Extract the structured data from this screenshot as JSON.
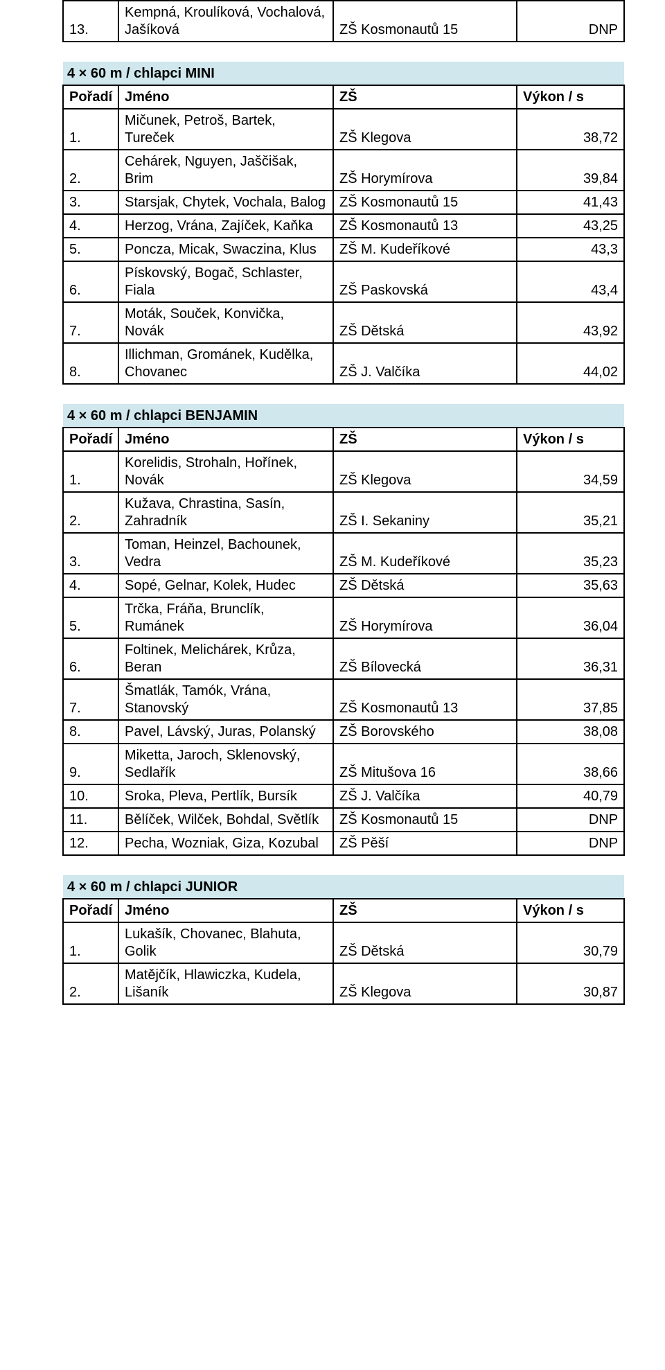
{
  "colors": {
    "section_bg": "#cfe7ed",
    "border": "#000000",
    "text": "#000000",
    "page_bg": "#ffffff"
  },
  "col_headers": {
    "rank": "Pořadí",
    "name": "Jméno",
    "school": "ZŠ",
    "result": "Výkon / s"
  },
  "tables": [
    {
      "title": null,
      "rows": [
        {
          "rank": "13.",
          "name": "Kempná, Kroulíková, Vochalová, Jašíková",
          "school": "ZŠ Kosmonautů 15",
          "result": "DNP"
        }
      ]
    },
    {
      "title": "4 × 60 m / chlapci MINI",
      "rows": [
        {
          "rank": "1.",
          "name": "Mičunek, Petroš, Bartek, Tureček",
          "school": "ZŠ Klegova",
          "result": "38,72"
        },
        {
          "rank": "2.",
          "name": "Cehárek, Nguyen, Jaščišak, Brim",
          "school": "ZŠ Horymírova",
          "result": "39,84"
        },
        {
          "rank": "3.",
          "name": "Starsjak, Chytek, Vochala, Balog",
          "school": "ZŠ Kosmonautů 15",
          "result": "41,43"
        },
        {
          "rank": "4.",
          "name": "Herzog, Vrána, Zajíček, Kaňka",
          "school": "ZŠ Kosmonautů 13",
          "result": "43,25"
        },
        {
          "rank": "5.",
          "name": "Poncza, Micak, Swaczina, Klus",
          "school": "ZŠ M. Kudeříkové",
          "result": "43,3"
        },
        {
          "rank": "6.",
          "name": "Pískovský, Bogač, Schlaster, Fiala",
          "school": "ZŠ Paskovská",
          "result": "43,4"
        },
        {
          "rank": "7.",
          "name": "Moták, Souček, Konvička, Novák",
          "school": "ZŠ Dětská",
          "result": "43,92"
        },
        {
          "rank": "8.",
          "name": "Illichman, Grománek, Kudělka, Chovanec",
          "school": "ZŠ J. Valčíka",
          "result": "44,02"
        }
      ]
    },
    {
      "title": "4 × 60 m / chlapci BENJAMIN",
      "rows": [
        {
          "rank": "1.",
          "name": "Korelidis, Strohaln, Hořínek, Novák",
          "school": "ZŠ Klegova",
          "result": "34,59"
        },
        {
          "rank": "2.",
          "name": "Kužava, Chrastina, Sasín, Zahradník",
          "school": "ZŠ I. Sekaniny",
          "result": "35,21"
        },
        {
          "rank": "3.",
          "name": "Toman, Heinzel, Bachounek, Vedra",
          "school": "ZŠ M. Kudeříkové",
          "result": "35,23"
        },
        {
          "rank": "4.",
          "name": "Sopé, Gelnar, Kolek, Hudec",
          "school": "ZŠ Dětská",
          "result": "35,63"
        },
        {
          "rank": "5.",
          "name": "Trčka, Fráňa, Brunclík, Rumánek",
          "school": "ZŠ Horymírova",
          "result": "36,04"
        },
        {
          "rank": "6.",
          "name": "Foltinek, Melichárek, Krůza, Beran",
          "school": "ZŠ Bílovecká",
          "result": "36,31"
        },
        {
          "rank": "7.",
          "name": "Šmatlák, Tamók, Vrána, Stanovský",
          "school": "ZŠ Kosmonautů 13",
          "result": "37,85"
        },
        {
          "rank": "8.",
          "name": "Pavel, Lávský, Juras, Polanský",
          "school": "ZŠ Borovského",
          "result": "38,08"
        },
        {
          "rank": "9.",
          "name": "Miketta, Jaroch, Sklenovský, Sedlařík",
          "school": "ZŠ Mitušova 16",
          "result": "38,66"
        },
        {
          "rank": "10.",
          "name": "Sroka, Pleva, Pertlík, Bursík",
          "school": "ZŠ J. Valčíka",
          "result": "40,79"
        },
        {
          "rank": "11.",
          "name": "Bělíček, Wilček, Bohdal, Světlík",
          "school": "ZŠ Kosmonautů 15",
          "result": "DNP"
        },
        {
          "rank": "12.",
          "name": "Pecha, Wozniak, Giza, Kozubal",
          "school": "ZŠ Pěší",
          "result": "DNP"
        }
      ]
    },
    {
      "title": "4 × 60 m / chlapci JUNIOR",
      "rows": [
        {
          "rank": "1.",
          "name": "Lukašík, Chovanec, Blahuta, Golik",
          "school": "ZŠ Dětská",
          "result": "30,79"
        },
        {
          "rank": "2.",
          "name": "Matějčík, Hlawiczka, Kudela, Lišaník",
          "school": "ZŠ Klegova",
          "result": "30,87"
        }
      ]
    }
  ]
}
